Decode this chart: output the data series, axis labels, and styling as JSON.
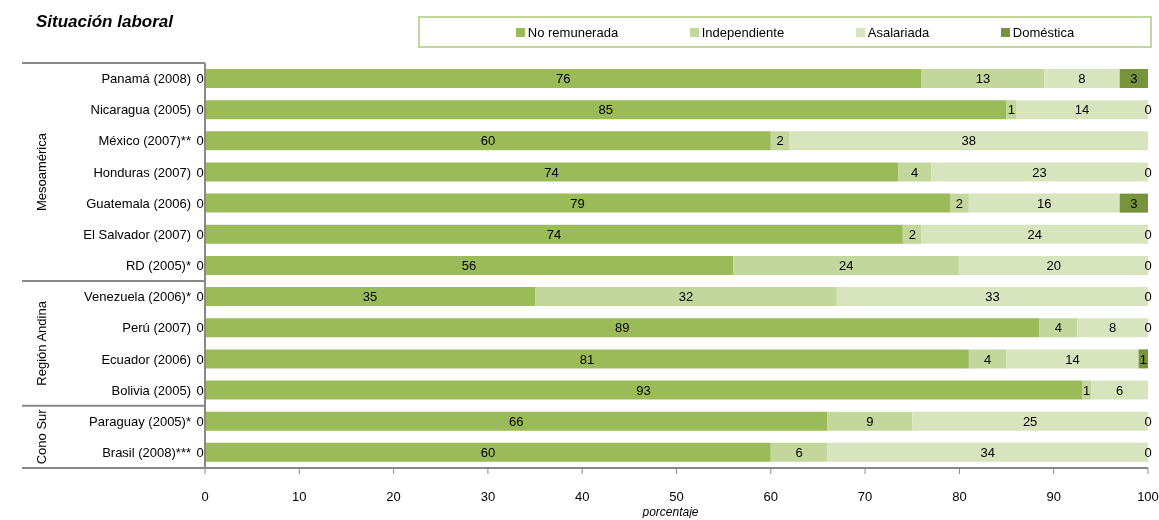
{
  "chart_data": {
    "type": "bar",
    "orientation": "horizontal",
    "stacked": true,
    "title": "Situación laboral",
    "xlabel": "porcentaje",
    "categories": [
      "Panamá (2008)",
      "Nicaragua (2005)",
      "México (2007)**",
      "Honduras (2007)",
      "Guatemala (2006)",
      "El Salvador (2007)",
      "RD (2005)*",
      "Venezuela (2006)*",
      "Perú (2007)",
      "Ecuador (2006)",
      "Bolivia (2005)",
      "Paraguay (2005)*",
      "Brasil (2008)***"
    ],
    "series": [
      {
        "name": "No remunerada",
        "color": "#9bbb59",
        "values": [
          76,
          85,
          60,
          73.5,
          79,
          74,
          56,
          35,
          88.5,
          81,
          93,
          66,
          60
        ],
        "value_labels": [
          "76",
          "85",
          "60",
          "74",
          "79",
          "74",
          "56",
          "35",
          "89",
          "81",
          "93",
          "66",
          "60"
        ]
      },
      {
        "name": "Independiente",
        "color": "#c3d69b",
        "values": [
          13,
          1,
          2,
          3.5,
          2,
          2,
          24,
          32,
          4,
          4,
          1,
          9,
          6
        ],
        "value_labels": [
          "13",
          "1",
          "2",
          "4",
          "2",
          "2",
          "24",
          "32",
          "4",
          "4",
          "1",
          "9",
          "6"
        ]
      },
      {
        "name": "Asalariada",
        "color": "#d7e4bd",
        "values": [
          8,
          14,
          38,
          23,
          16,
          24,
          20,
          33,
          7.5,
          14,
          6,
          25,
          34
        ],
        "value_labels": [
          "8",
          "14",
          "38",
          "23",
          "16",
          "24",
          "20",
          "33",
          "8",
          "14",
          "6",
          "25",
          "34"
        ]
      },
      {
        "name": "Doméstica",
        "color": "#77933c",
        "values": [
          3,
          0,
          null,
          0,
          3,
          0,
          0,
          0,
          0,
          1,
          null,
          0,
          0
        ],
        "value_labels": [
          "3",
          "0",
          null,
          "0",
          "3",
          "0",
          "0",
          "0",
          "0",
          "1",
          null,
          "0",
          "0"
        ]
      }
    ],
    "xlim": [
      0,
      100
    ],
    "xticks": [
      0,
      10,
      20,
      30,
      40,
      50,
      60,
      70,
      80,
      90,
      100
    ],
    "grid": false,
    "legend": "top",
    "annotations": [
      "Mesoamérica",
      "Región Andina",
      "Cono Sur",
      {
        "text": "0",
        "y": "Panamá (2008)"
      },
      {
        "text": "0",
        "y": "Nicaragua (2005)"
      },
      {
        "text": "0",
        "y": "México (2007)**"
      },
      {
        "text": "0",
        "y": "Honduras (2007)"
      },
      {
        "text": "0",
        "y": "Guatemala (2006)"
      },
      {
        "text": "0",
        "y": "El Salvador (2007)"
      },
      {
        "text": "0",
        "y": "RD (2005)*"
      },
      {
        "text": "0",
        "y": "Venezuela (2006)*"
      },
      {
        "text": "0",
        "y": "Perú (2007)"
      },
      {
        "text": "0",
        "y": "Ecuador (2006)"
      },
      {
        "text": "0",
        "y": "Bolivia (2005)"
      },
      {
        "text": "0",
        "y": "Paraguay (2005)*"
      },
      {
        "text": "0",
        "y": "Brasil (2008)***"
      }
    ]
  }
}
